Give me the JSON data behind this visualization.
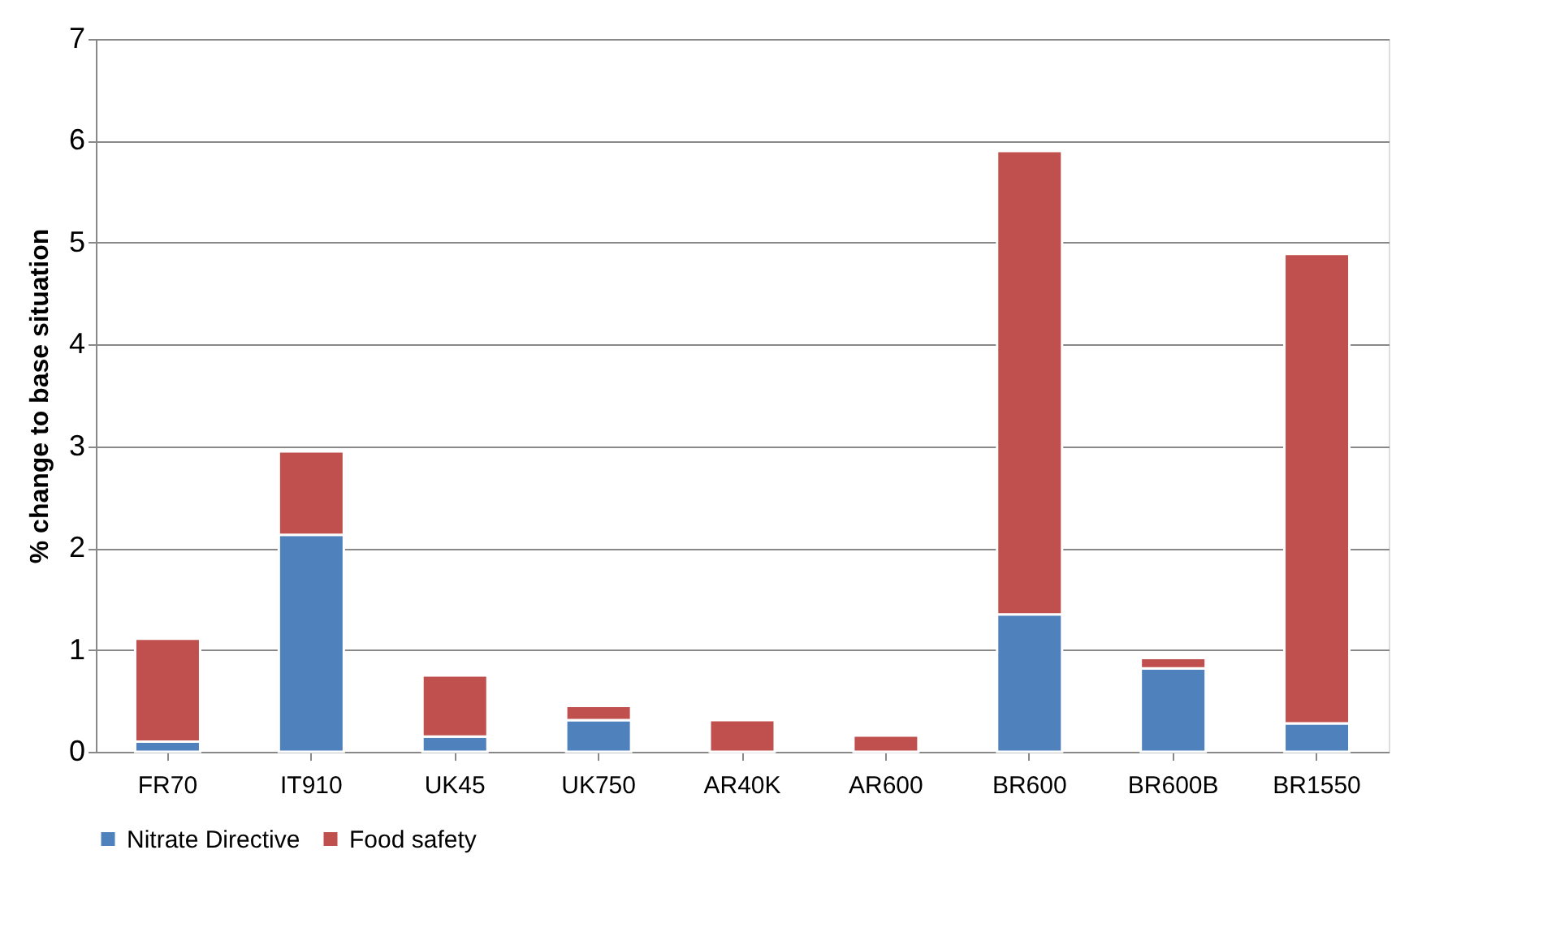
{
  "chart_data": {
    "type": "bar",
    "stacked": true,
    "ylabel": "% change to base situation",
    "categories": [
      "FR70",
      "IT910",
      "UK45",
      "UK750",
      "AR40K",
      "AR600",
      "BR600",
      "BR600B",
      "BR1550"
    ],
    "series": [
      {
        "name": "Nitrate Directive",
        "color": "#4f81bd",
        "values": [
          0.1,
          2.13,
          0.15,
          0.31,
          0,
          0,
          1.35,
          0.82,
          0.28
        ]
      },
      {
        "name": "Food safety",
        "color": "#c0504d",
        "values": [
          1.01,
          0.82,
          0.6,
          0.14,
          0.31,
          0.16,
          4.55,
          0.1,
          4.61
        ]
      }
    ],
    "ylim": [
      0,
      7
    ],
    "yticks": [
      0,
      1,
      2,
      3,
      4,
      5,
      6,
      7
    ],
    "grid": "y",
    "legend": "bottom"
  }
}
